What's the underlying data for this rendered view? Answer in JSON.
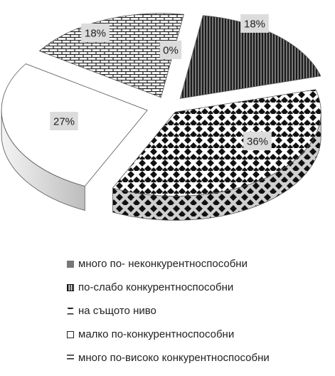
{
  "chart_data": {
    "type": "pie",
    "title": "",
    "slices": [
      {
        "label": "много по- неконкурентноспособни",
        "value": 18,
        "data_label": "18%",
        "pattern": "vertical-lines",
        "color": "#555555"
      },
      {
        "label": "по-слабо конкурентноспособни",
        "value": 36,
        "data_label": "36%",
        "pattern": "diamond-checker",
        "color": "#111111"
      },
      {
        "label": "на същото ниво",
        "value": 0,
        "data_label": "0%",
        "pattern": "none",
        "color": "#333333"
      },
      {
        "label": "малко по-конкурентноспособни",
        "value": 27,
        "data_label": "27%",
        "pattern": "solid",
        "color": "#ffffff"
      },
      {
        "label": "много по-високо конкурентноспособни",
        "value": 18,
        "data_label": "18%",
        "pattern": "brick",
        "color": "#333333"
      }
    ],
    "legend_position": "bottom",
    "style": "3d-exploded"
  }
}
